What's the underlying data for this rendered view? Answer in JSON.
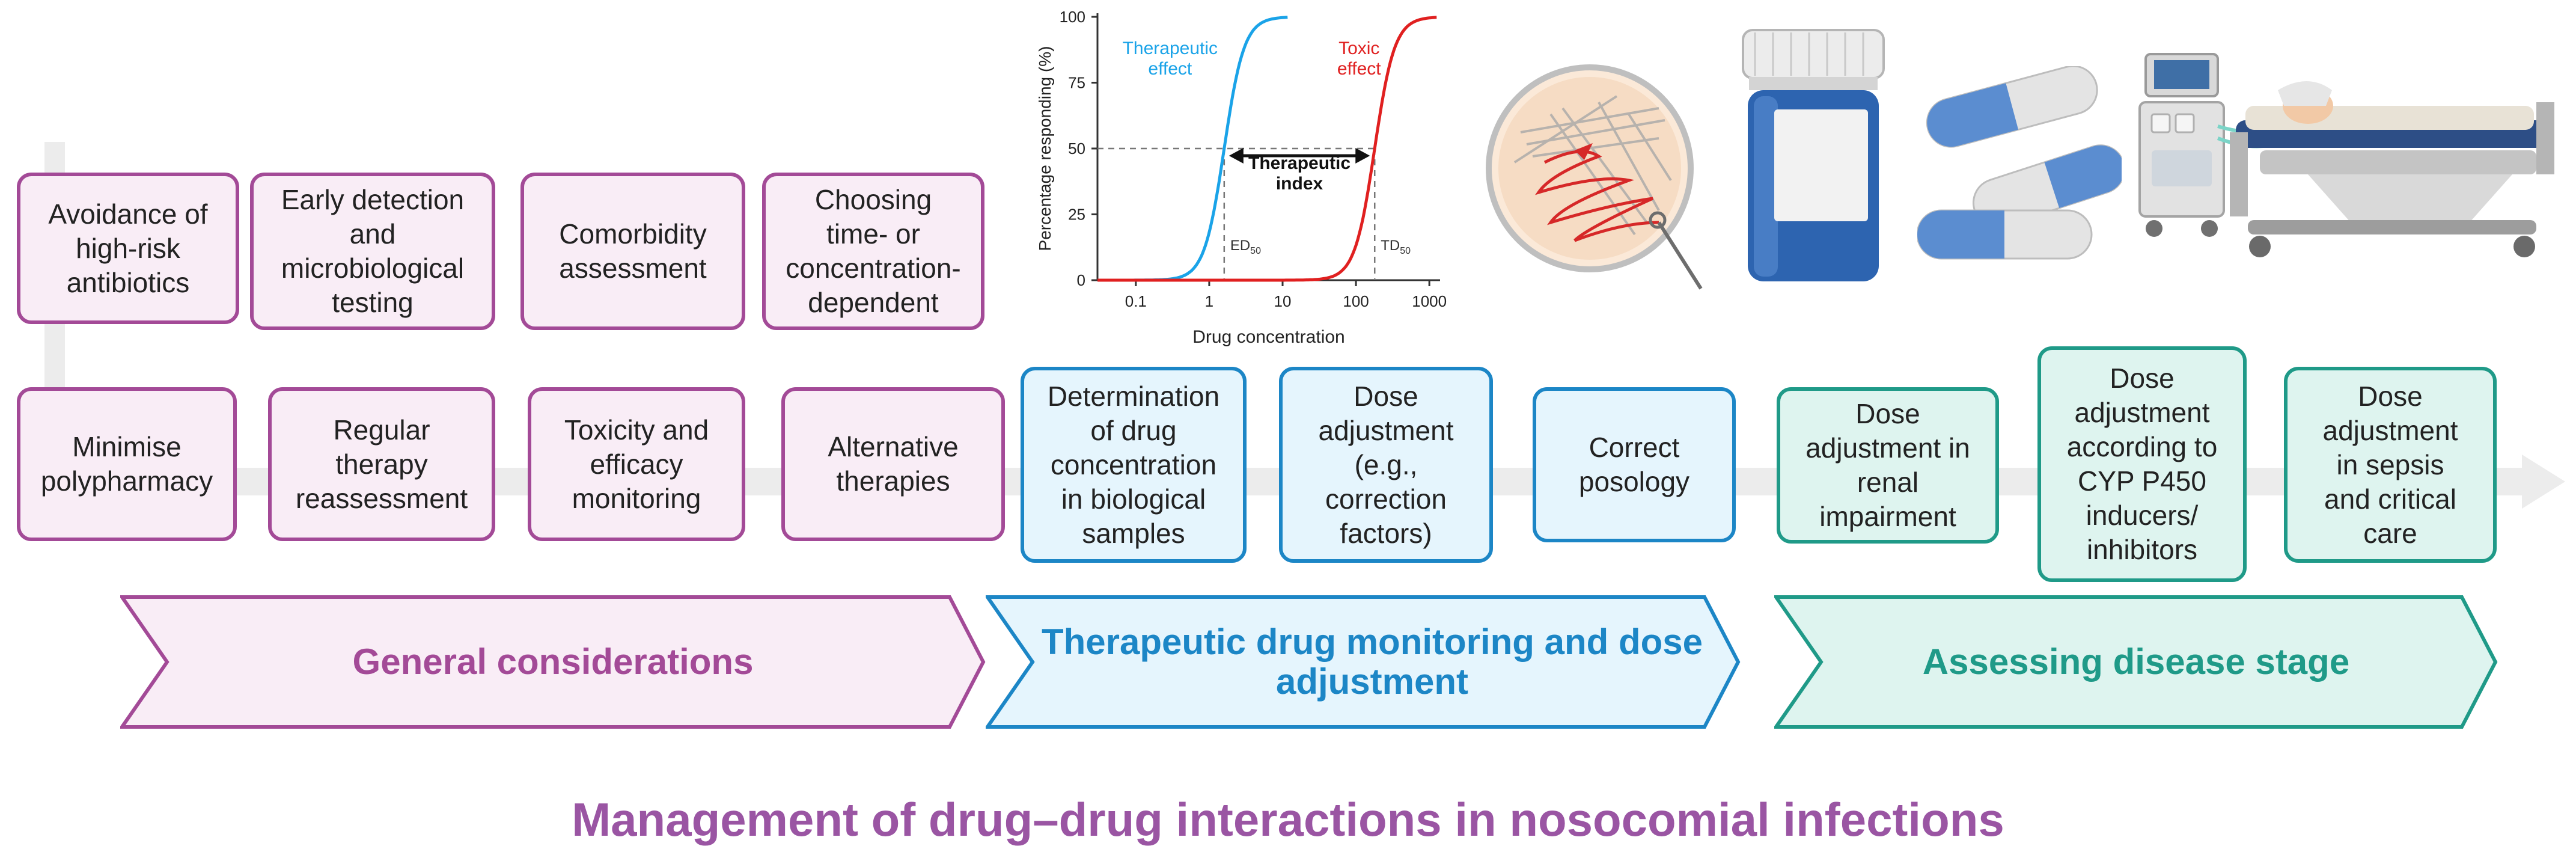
{
  "colors": {
    "general": "#a34a97",
    "tdm": "#1c86c6",
    "disease": "#1f9a88",
    "title": "#9a55a3",
    "therapeutic": "#1aa3e8",
    "toxic": "#e02020"
  },
  "title": "Management of drug–drug interactions in nosocomial infections",
  "general_top": [
    "Avoidance of\nhigh-risk\nantibiotics",
    "Early detection\nand\nmicrobiological\ntesting",
    "Comorbidity\nassessment",
    "Choosing\ntime- or\nconcentration-\ndependent"
  ],
  "general_bottom": [
    "Minimise\npolypharmacy",
    "Regular\ntherapy\nreassessment",
    "Toxicity and\nefficacy\nmonitoring",
    "Alternative\ntherapies"
  ],
  "tdm": [
    "Determination\nof drug\nconcentration\nin biological\nsamples",
    "Dose\nadjustment\n(e.g.,\ncorrection\nfactors)",
    "Correct\nposology"
  ],
  "disease": [
    "Dose\nadjustment in\nrenal\nimpairment",
    "Dose\nadjustment\naccording to\nCYP P450\ninducers/\ninhibitors",
    "Dose\nadjustment\nin sepsis\nand critical\ncare"
  ],
  "stages": {
    "general": "General considerations",
    "tdm": "Therapeutic drug monitoring and dose\nadjustment",
    "disease": "Assessing disease stage"
  },
  "illustrations": [
    "petri-dish-icon",
    "pill-bottle-icon",
    "capsule-icon",
    "icu-patient-bed-icon"
  ],
  "chart_data": {
    "type": "line",
    "title": "",
    "xlabel": "Drug concentration",
    "ylabel": "Percentage responding (%)",
    "xscale": "log",
    "xlim": [
      0.03,
      1400
    ],
    "ylim": [
      0,
      100
    ],
    "xticks": [
      0.1,
      1,
      10,
      100,
      1000
    ],
    "xtick_labels": [
      "0.1",
      "1",
      "10",
      "100",
      "1000"
    ],
    "yticks": [
      0,
      25,
      50,
      75,
      100
    ],
    "ytick_labels": [
      "0",
      "25",
      "50",
      "75",
      "100"
    ],
    "series": [
      {
        "name": "Therapeutic\neffect",
        "color": "#1aa3e8",
        "ed50": 1.6,
        "hill": 3.2
      },
      {
        "name": "Toxic\neffect",
        "color": "#e02020",
        "ed50": 180,
        "hill": 3.2
      }
    ],
    "markers": [
      {
        "label": "ED",
        "sub": "50",
        "x": 1.6
      },
      {
        "label": "TD",
        "sub": "50",
        "x": 180
      }
    ],
    "annotation": "Therapeutic\nindex"
  }
}
